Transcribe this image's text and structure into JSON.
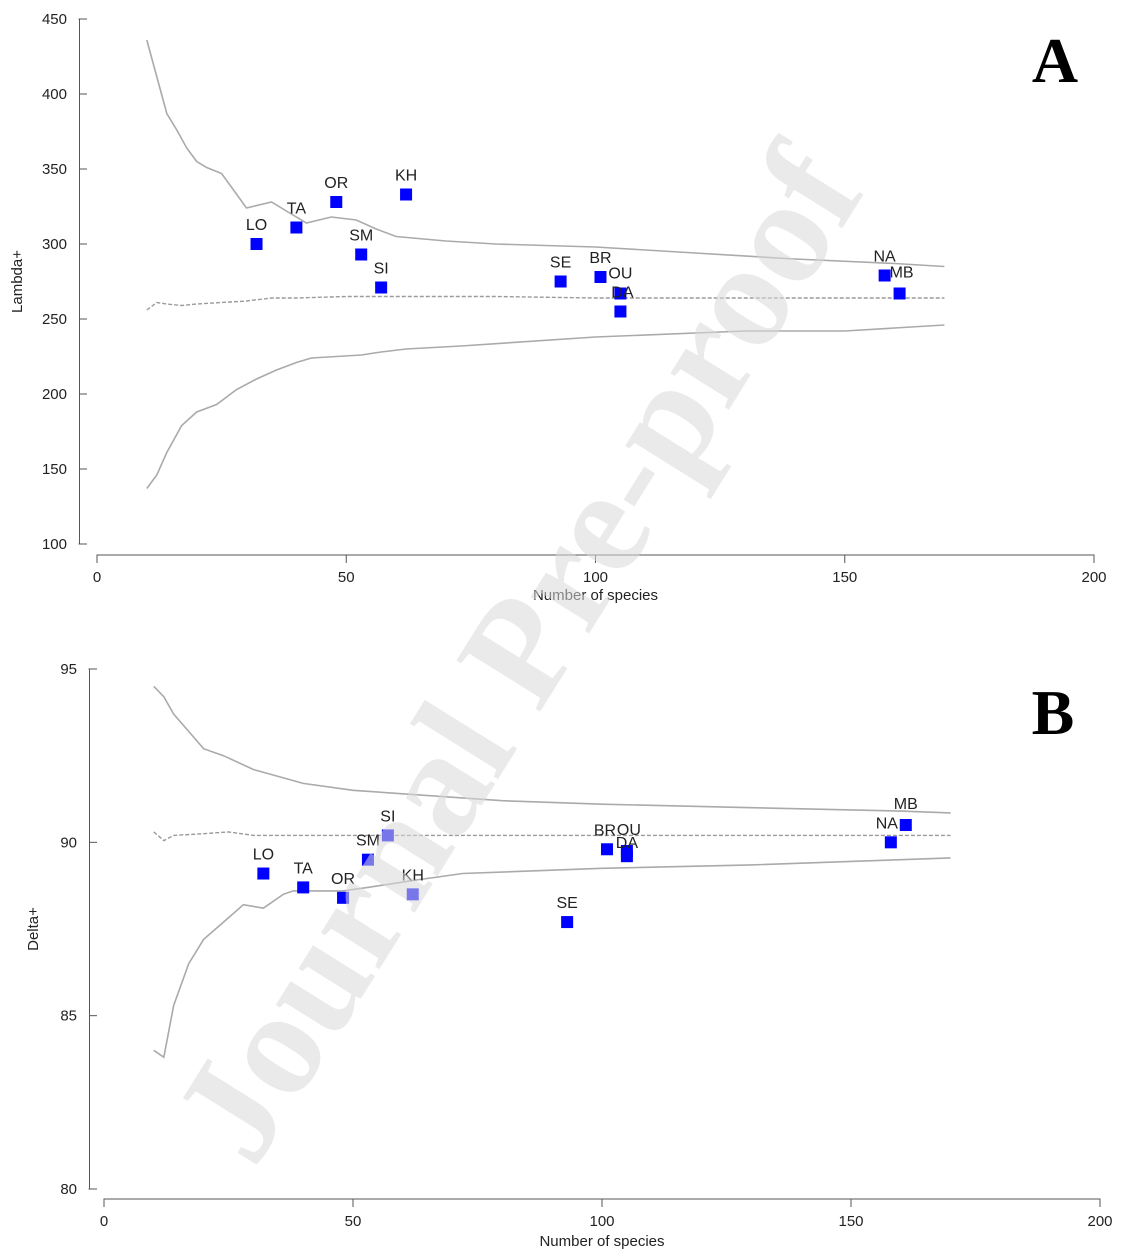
{
  "watermark": "Journal Pre-proof",
  "chart_data": [
    {
      "type": "scatter",
      "panel_label": "A",
      "xlabel": "Number of species",
      "ylabel": "Lambda+",
      "xlim": [
        0,
        200
      ],
      "ylim": [
        100,
        450
      ],
      "x_ticks": [
        0,
        50,
        100,
        150,
        200
      ],
      "y_ticks": [
        100,
        150,
        200,
        250,
        300,
        350,
        400,
        450
      ],
      "point_color": "#0000ff",
      "curve_color": "#aaaaaa",
      "points": [
        {
          "label": "LO",
          "x": 32,
          "y": 300
        },
        {
          "label": "TA",
          "x": 40,
          "y": 311
        },
        {
          "label": "OR",
          "x": 48,
          "y": 328
        },
        {
          "label": "KH",
          "x": 62,
          "y": 333
        },
        {
          "label": "SM",
          "x": 53,
          "y": 293
        },
        {
          "label": "SI",
          "x": 57,
          "y": 271
        },
        {
          "label": "SE",
          "x": 93,
          "y": 275
        },
        {
          "label": "BR",
          "x": 101,
          "y": 278
        },
        {
          "label": "OU",
          "x": 105,
          "y": 267
        },
        {
          "label": "DA",
          "x": 105,
          "y": 255
        },
        {
          "label": "NA",
          "x": 158,
          "y": 279
        },
        {
          "label": "MB",
          "x": 161,
          "y": 267
        }
      ],
      "upper_limit": {
        "x": [
          10,
          14,
          16,
          18,
          20,
          22,
          25,
          30,
          35,
          38,
          42,
          47,
          52,
          56,
          60,
          70,
          80,
          100,
          120,
          140,
          160,
          170
        ],
        "y": [
          436,
          387,
          376,
          364,
          355,
          351,
          347,
          324,
          328,
          322,
          314,
          318,
          316,
          310,
          305,
          302,
          300,
          298,
          294,
          290,
          287,
          285
        ]
      },
      "mean_line": {
        "x": [
          10,
          12,
          14,
          17,
          20,
          25,
          30,
          35,
          40,
          50,
          60,
          80,
          100,
          120,
          140,
          160,
          170
        ],
        "y": [
          256,
          261,
          260,
          259,
          260,
          261,
          262,
          264,
          264,
          265,
          265,
          265,
          264,
          264,
          264,
          264,
          264
        ]
      },
      "lower_limit": {
        "x": [
          10,
          12,
          14,
          17,
          20,
          24,
          28,
          32,
          36,
          40,
          43,
          53,
          57,
          62,
          73,
          100,
          130,
          150,
          160,
          170
        ],
        "y": [
          137,
          146,
          161,
          179,
          188,
          193,
          203,
          210,
          216,
          221,
          224,
          226,
          228,
          230,
          232,
          238,
          242,
          242,
          244,
          246
        ]
      }
    },
    {
      "type": "scatter",
      "panel_label": "B",
      "xlabel": "Number of species",
      "ylabel": "Delta+",
      "xlim": [
        0,
        200
      ],
      "ylim": [
        80,
        95
      ],
      "x_ticks": [
        0,
        50,
        100,
        150,
        200
      ],
      "y_ticks": [
        80,
        85,
        90,
        95
      ],
      "point_color": "#0000ff",
      "curve_color": "#aaaaaa",
      "points": [
        {
          "label": "LO",
          "x": 32,
          "y": 89.1
        },
        {
          "label": "TA",
          "x": 40,
          "y": 88.7
        },
        {
          "label": "OR",
          "x": 48,
          "y": 88.4
        },
        {
          "label": "KH",
          "x": 62,
          "y": 88.5
        },
        {
          "label": "SM",
          "x": 53,
          "y": 89.5
        },
        {
          "label": "SI",
          "x": 57,
          "y": 90.2
        },
        {
          "label": "SE",
          "x": 93,
          "y": 87.7
        },
        {
          "label": "BR",
          "x": 101,
          "y": 89.8
        },
        {
          "label": "OU",
          "x": 105,
          "y": 89.75
        },
        {
          "label": "DA",
          "x": 105,
          "y": 89.6
        },
        {
          "label": "NA",
          "x": 158,
          "y": 90.0
        },
        {
          "label": "MB",
          "x": 161,
          "y": 90.5
        }
      ],
      "upper_limit": {
        "x": [
          10,
          12,
          14,
          17,
          20,
          24,
          30,
          40,
          50,
          60,
          80,
          100,
          130,
          160,
          170
        ],
        "y": [
          94.5,
          94.2,
          93.7,
          93.2,
          92.7,
          92.5,
          92.1,
          91.7,
          91.5,
          91.4,
          91.2,
          91.1,
          91.0,
          90.9,
          90.85
        ]
      },
      "mean_line": {
        "x": [
          10,
          12,
          14,
          20,
          25,
          30,
          40,
          50,
          60,
          80,
          100,
          130,
          160,
          170
        ],
        "y": [
          90.3,
          90.05,
          90.2,
          90.25,
          90.3,
          90.2,
          90.2,
          90.2,
          90.2,
          90.2,
          90.2,
          90.2,
          90.2,
          90.2
        ]
      },
      "lower_limit": {
        "x": [
          10,
          12,
          14,
          17,
          20,
          24,
          28,
          32,
          36,
          38,
          42,
          48,
          53,
          62,
          72,
          100,
          130,
          160,
          170
        ],
        "y": [
          84.0,
          83.8,
          85.3,
          86.5,
          87.2,
          87.7,
          88.2,
          88.1,
          88.5,
          88.6,
          88.6,
          88.6,
          88.7,
          88.9,
          89.1,
          89.25,
          89.35,
          89.5,
          89.55
        ]
      }
    }
  ]
}
